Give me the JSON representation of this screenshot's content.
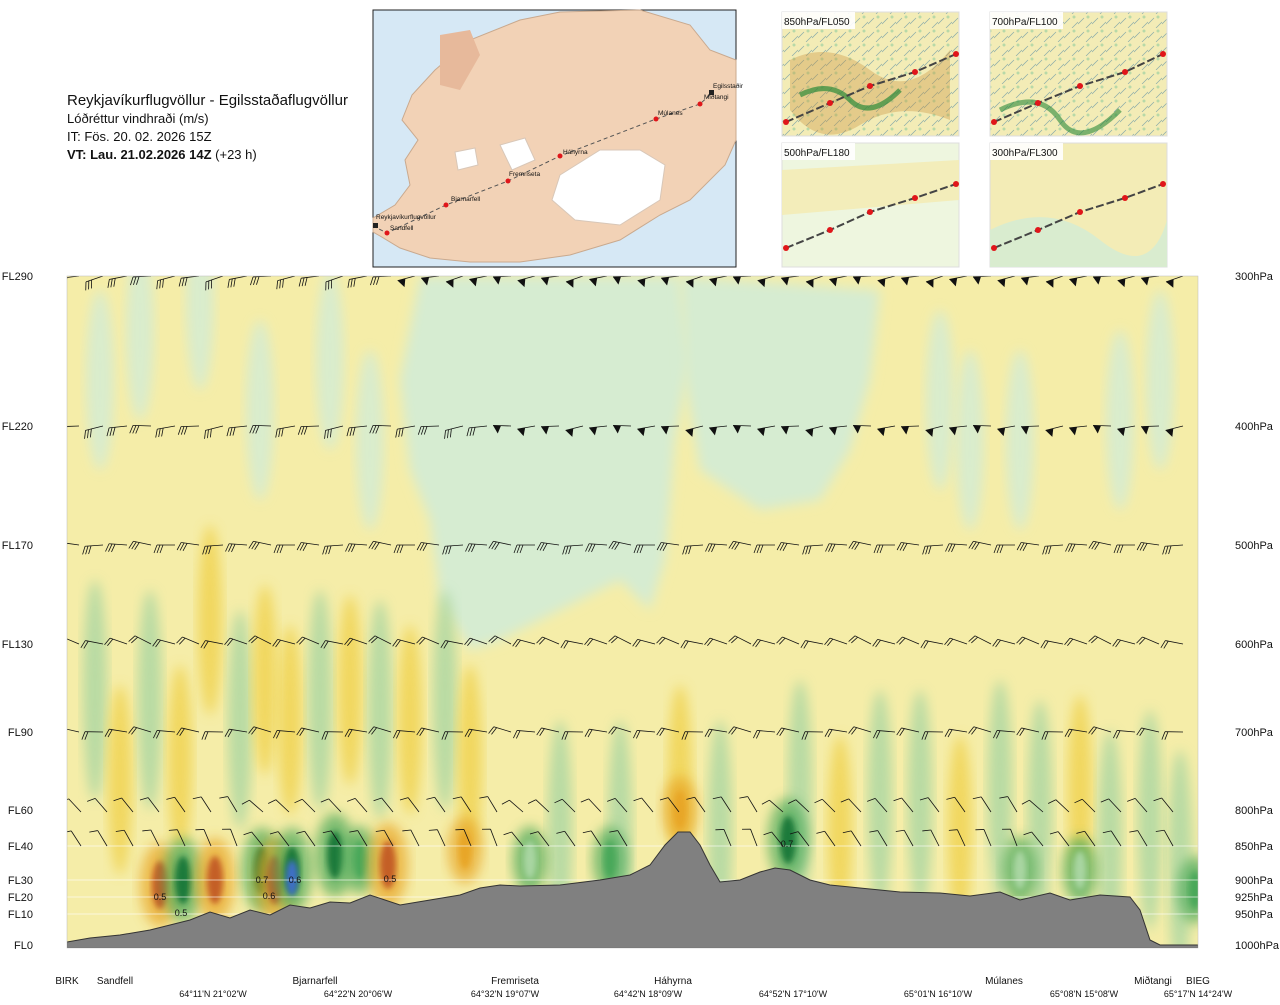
{
  "header": {
    "route": "Reykjavíkurflugvöllur - Egilsstaðaflugvöllur",
    "variable": "Lóðréttur vindhraði (m/s)",
    "issue_time": "IT: Fös. 20. 02. 2026 15Z",
    "valid_time_bold": "VT: Lau. 21.02.2026 14Z",
    "valid_offset": "(+23 h)"
  },
  "map": {
    "places": [
      "Reykjavíkurflugvöllur",
      "Sandfell",
      "Bjarnarfell",
      "Fremriseta",
      "Háhyrna",
      "Múlanes",
      "Miðtangi",
      "Egilsstaðir"
    ],
    "colors": {
      "sea": "#d6e8f5",
      "land": "#f2d2b6",
      "ice": "#ffffff",
      "route": "#555555",
      "point": "#e0161a"
    }
  },
  "insets": [
    {
      "label": "850hPa/FL050"
    },
    {
      "label": "700hPa/FL100"
    },
    {
      "label": "500hPa/FL180"
    },
    {
      "label": "300hPa/FL300"
    }
  ],
  "chart_data": {
    "type": "heatmap",
    "title": "Lóðréttur vindhraði (m/s)",
    "flight_levels": [
      "FL290",
      "FL220",
      "FL170",
      "FL130",
      "FL90",
      "FL60",
      "FL40",
      "FL30",
      "FL20",
      "FL10",
      "FL0"
    ],
    "pressure_levels": [
      "300hPa",
      "400hPa",
      "500hPa",
      "600hPa",
      "700hPa",
      "800hPa",
      "850hPa",
      "900hPa",
      "925hPa",
      "950hPa",
      "1000hPa"
    ],
    "waypoints": [
      "BIRK",
      "Sandfell",
      "Bjarnarfell",
      "Fremriseta",
      "Háhyrna",
      "Miðtangi",
      "BIEG",
      "Múlanes"
    ],
    "coordinates": [
      "64°11'N 21°02'W",
      "64°22'N 20°06'W",
      "64°32'N 19°07'W",
      "64°42'N 18°09'W",
      "64°52'N 17°10'W",
      "65°01'N 16°10'W",
      "65°08'N 15°08'W",
      "65°17'N 14°24'W"
    ],
    "contour_labels": [
      "0.5",
      "0.6",
      "0.7",
      "0.6",
      "0.5",
      "0.5",
      "0.7"
    ],
    "colors": {
      "updraft_weak": "#f5eda8",
      "updraft_mid": "#f0d24e",
      "updraft_strong": "#e8a625",
      "updraft_max": "#c45e28",
      "downdraft_weak": "#d6ecd1",
      "downdraft_mid": "#a9d6a2",
      "downdraft_strong": "#49a85a",
      "downdraft_max": "#1e7a3a",
      "terrain": "#808080"
    }
  }
}
